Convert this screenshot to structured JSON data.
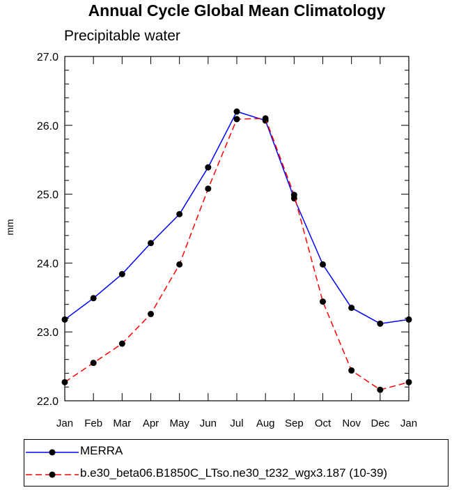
{
  "chart_data": {
    "type": "line",
    "title": "Annual Cycle Global Mean Climatology",
    "subtitle": "Precipitable water",
    "ylabel": "mm",
    "xlabel": "",
    "categories": [
      "Jan",
      "Feb",
      "Mar",
      "Apr",
      "May",
      "Jun",
      "Jul",
      "Aug",
      "Sep",
      "Oct",
      "Nov",
      "Dec",
      "Jan"
    ],
    "ylim": [
      22.0,
      27.0
    ],
    "yticks": [
      "22.0",
      "23.0",
      "24.0",
      "25.0",
      "26.0",
      "27.0"
    ],
    "grid": false,
    "legend_position": "bottom",
    "series": [
      {
        "name": "MERRA",
        "color": "#0000ff",
        "line_style": "solid",
        "values": [
          23.18,
          23.49,
          23.84,
          24.29,
          24.71,
          25.39,
          26.2,
          26.07,
          24.94,
          23.98,
          23.35,
          23.12,
          23.18
        ]
      },
      {
        "name": "b.e30_beta06.B1850C_LTso.ne30_t232_wgx3.187 (10-39)",
        "color": "#ff0000",
        "line_style": "dashed",
        "values": [
          22.27,
          22.55,
          22.83,
          23.26,
          23.98,
          25.08,
          26.09,
          26.1,
          24.99,
          23.44,
          22.44,
          22.16,
          22.27
        ]
      }
    ]
  }
}
